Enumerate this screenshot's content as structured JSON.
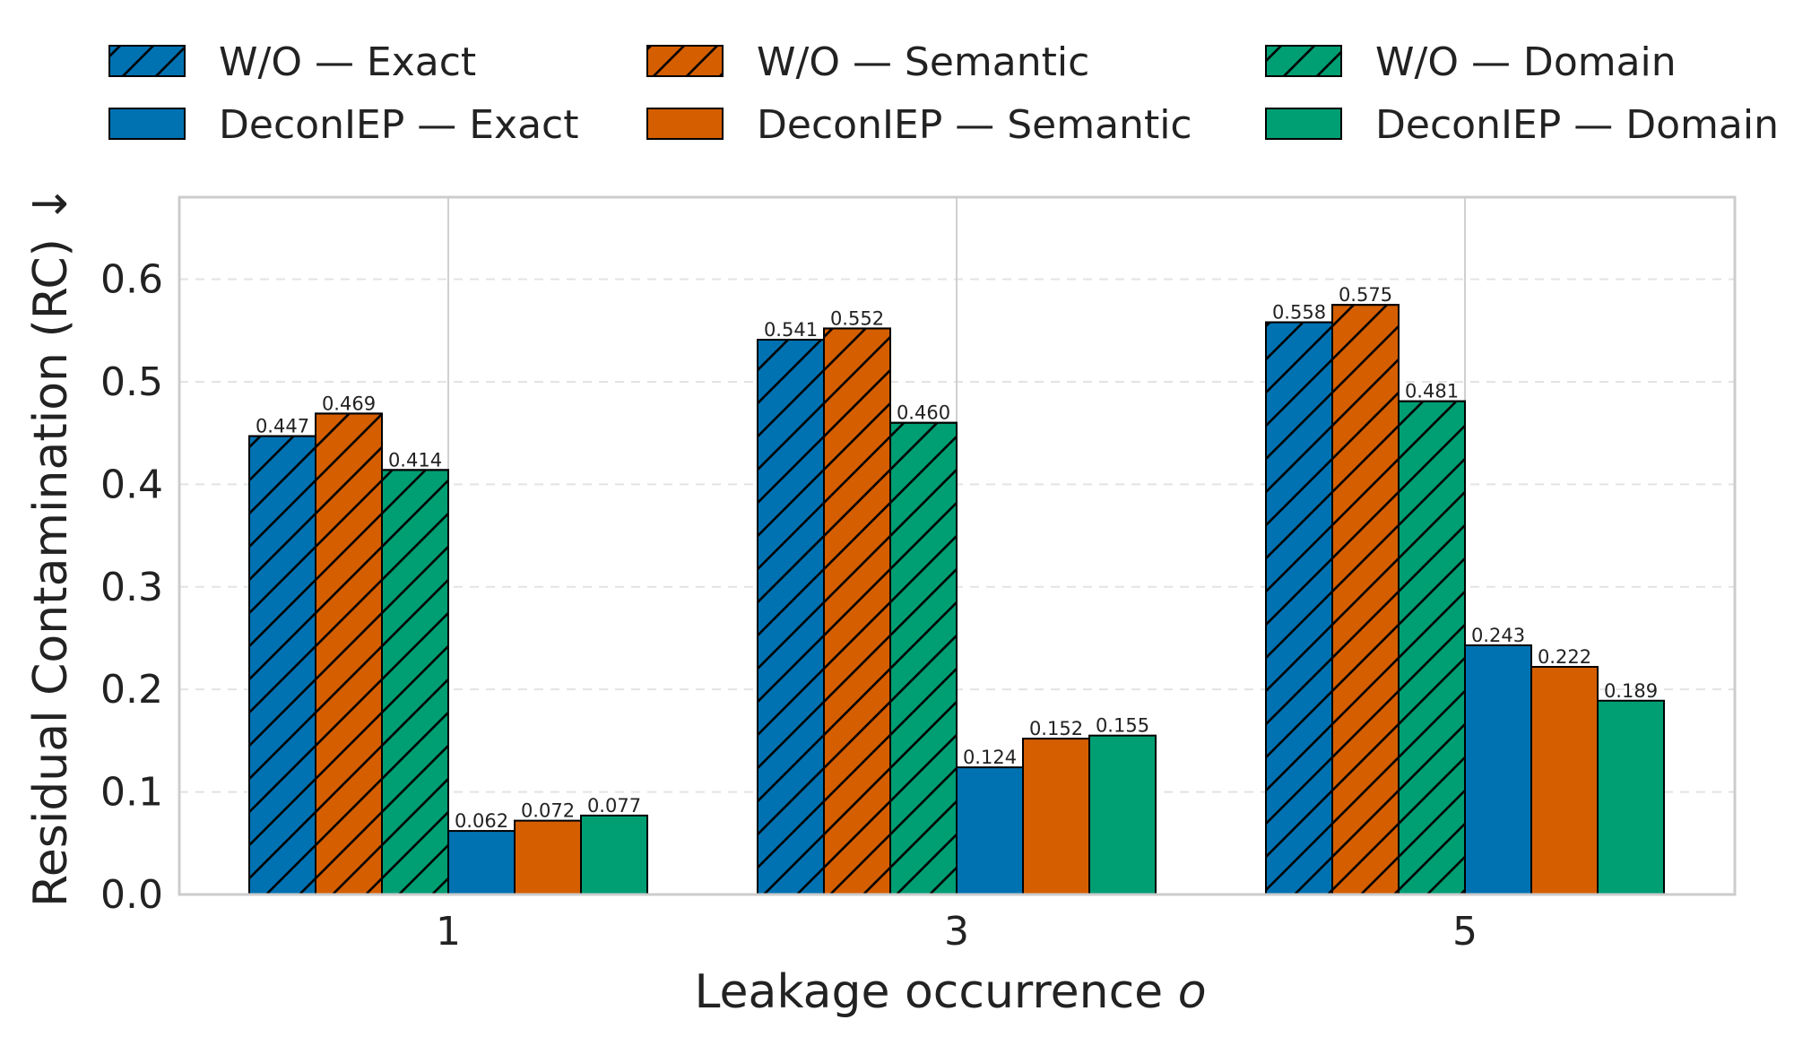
{
  "chart_data": {
    "type": "bar",
    "title": "",
    "xlabel": "Leakage occurrence",
    "xlabel_var": "o",
    "ylabel": "Residual Contamination (RC) ↓",
    "categories": [
      "1",
      "3",
      "5"
    ],
    "ylim": [
      0,
      0.68
    ],
    "yticks": [
      0.0,
      0.1,
      0.2,
      0.3,
      0.4,
      0.5,
      0.6
    ],
    "ytick_labels": [
      "0.0",
      "0.1",
      "0.2",
      "0.3",
      "0.4",
      "0.5",
      "0.6"
    ],
    "grid": true,
    "legend_position": "top",
    "series": [
      {
        "name": "W/O — Exact",
        "color": "#0072B2",
        "hatch": true,
        "values": [
          0.447,
          0.541,
          0.558
        ],
        "labels": [
          "0.447",
          "0.541",
          "0.558"
        ]
      },
      {
        "name": "W/O — Semantic",
        "color": "#D55E00",
        "hatch": true,
        "values": [
          0.469,
          0.552,
          0.575
        ],
        "labels": [
          "0.469",
          "0.552",
          "0.575"
        ]
      },
      {
        "name": "W/O — Domain",
        "color": "#009E73",
        "hatch": true,
        "values": [
          0.414,
          0.46,
          0.481
        ],
        "labels": [
          "0.414",
          "0.460",
          "0.481"
        ]
      },
      {
        "name": "DeconIEP — Exact",
        "color": "#0072B2",
        "hatch": false,
        "values": [
          0.062,
          0.124,
          0.243
        ],
        "labels": [
          "0.062",
          "0.124",
          "0.243"
        ]
      },
      {
        "name": "DeconIEP — Semantic",
        "color": "#D55E00",
        "hatch": false,
        "values": [
          0.072,
          0.152,
          0.222
        ],
        "labels": [
          "0.072",
          "0.152",
          "0.222"
        ]
      },
      {
        "name": "DeconIEP — Domain",
        "color": "#009E73",
        "hatch": false,
        "values": [
          0.077,
          0.155,
          0.189
        ],
        "labels": [
          "0.077",
          "0.155",
          "0.189"
        ]
      }
    ]
  }
}
